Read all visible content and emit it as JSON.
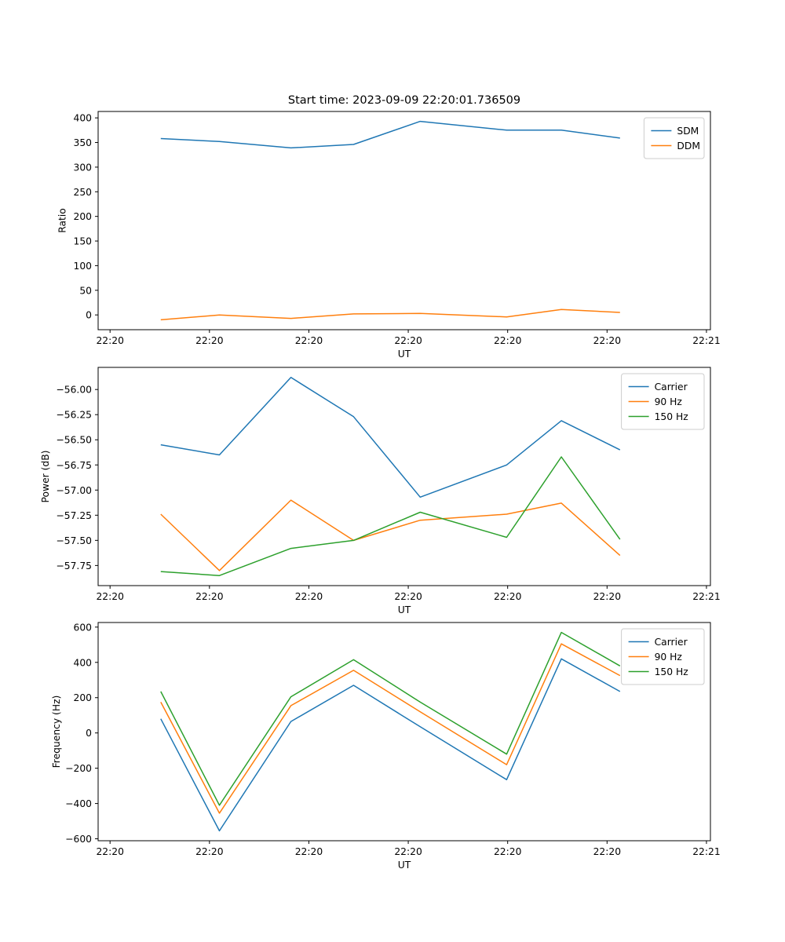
{
  "figure": {
    "title": "Start time: 2023-09-09 22:20:01.736509",
    "background": "#ffffff"
  },
  "chart_data": [
    {
      "type": "line",
      "name": "ratio",
      "xlabel": "UT",
      "ylabel": "Ratio",
      "x_unit": "seconds after 22:20:00 UT",
      "x": [
        5.1,
        11.0,
        18.2,
        24.5,
        31.2,
        39.9,
        45.4,
        51.3
      ],
      "xlim": [
        -1.2,
        60.4
      ],
      "ylim": [
        -30,
        413
      ],
      "xticks": [
        {
          "v": 0,
          "label": "22:20"
        },
        {
          "v": 10,
          "label": "22:20"
        },
        {
          "v": 20,
          "label": "22:20"
        },
        {
          "v": 30,
          "label": "22:20"
        },
        {
          "v": 40,
          "label": "22:20"
        },
        {
          "v": 50,
          "label": "22:20"
        },
        {
          "v": 60,
          "label": "22:21"
        }
      ],
      "yticks": [
        {
          "v": 0,
          "label": "0"
        },
        {
          "v": 50,
          "label": "50"
        },
        {
          "v": 100,
          "label": "100"
        },
        {
          "v": 150,
          "label": "150"
        },
        {
          "v": 200,
          "label": "200"
        },
        {
          "v": 250,
          "label": "250"
        },
        {
          "v": 300,
          "label": "300"
        },
        {
          "v": 350,
          "label": "350"
        },
        {
          "v": 400,
          "label": "400"
        }
      ],
      "legend_position": "upper right",
      "series": [
        {
          "name": "SDM",
          "color": "#1f77b4",
          "values": [
            358,
            352,
            339,
            346,
            393,
            375,
            375,
            359
          ]
        },
        {
          "name": "DDM",
          "color": "#ff7f0e",
          "values": [
            -10,
            0,
            -7,
            2,
            3,
            -4,
            11,
            5
          ]
        }
      ]
    },
    {
      "type": "line",
      "name": "power",
      "xlabel": "UT",
      "ylabel": "Power (dB)",
      "x_unit": "seconds after 22:20:00 UT",
      "x": [
        5.1,
        11.0,
        18.2,
        24.5,
        31.2,
        39.9,
        45.4,
        51.3
      ],
      "xlim": [
        -1.2,
        60.4
      ],
      "ylim": [
        -57.95,
        -55.78
      ],
      "xticks": [
        {
          "v": 0,
          "label": "22:20"
        },
        {
          "v": 10,
          "label": "22:20"
        },
        {
          "v": 20,
          "label": "22:20"
        },
        {
          "v": 30,
          "label": "22:20"
        },
        {
          "v": 40,
          "label": "22:20"
        },
        {
          "v": 50,
          "label": "22:20"
        },
        {
          "v": 60,
          "label": "22:21"
        }
      ],
      "yticks": [
        {
          "v": -57.75,
          "label": "−57.75"
        },
        {
          "v": -57.5,
          "label": "−57.50"
        },
        {
          "v": -57.25,
          "label": "−57.25"
        },
        {
          "v": -57.0,
          "label": "−57.00"
        },
        {
          "v": -56.75,
          "label": "−56.75"
        },
        {
          "v": -56.5,
          "label": "−56.50"
        },
        {
          "v": -56.25,
          "label": "−56.25"
        },
        {
          "v": -56.0,
          "label": "−56.00"
        }
      ],
      "legend_position": "upper right",
      "series": [
        {
          "name": "Carrier",
          "color": "#1f77b4",
          "values": [
            -56.55,
            -56.65,
            -55.88,
            -56.27,
            -57.07,
            -56.75,
            -56.31,
            -56.6
          ]
        },
        {
          "name": "90 Hz",
          "color": "#ff7f0e",
          "values": [
            -57.24,
            -57.8,
            -57.1,
            -57.5,
            -57.3,
            -57.24,
            -57.13,
            -57.65
          ]
        },
        {
          "name": "150 Hz",
          "color": "#2ca02c",
          "values": [
            -57.81,
            -57.85,
            -57.58,
            -57.5,
            -57.22,
            -57.47,
            -56.67,
            -57.49
          ]
        }
      ]
    },
    {
      "type": "line",
      "name": "frequency",
      "xlabel": "UT",
      "ylabel": "Frequency (Hz)",
      "x_unit": "seconds after 22:20:00 UT",
      "x": [
        5.1,
        11.0,
        18.2,
        24.5,
        31.2,
        39.9,
        45.4,
        51.3
      ],
      "xlim": [
        -1.2,
        60.4
      ],
      "ylim": [
        -611,
        626
      ],
      "xticks": [
        {
          "v": 0,
          "label": "22:20"
        },
        {
          "v": 10,
          "label": "22:20"
        },
        {
          "v": 20,
          "label": "22:20"
        },
        {
          "v": 30,
          "label": "22:20"
        },
        {
          "v": 40,
          "label": "22:20"
        },
        {
          "v": 50,
          "label": "22:20"
        },
        {
          "v": 60,
          "label": "22:21"
        }
      ],
      "yticks": [
        {
          "v": -600,
          "label": "−600"
        },
        {
          "v": -400,
          "label": "−400"
        },
        {
          "v": -200,
          "label": "−200"
        },
        {
          "v": 0,
          "label": "0"
        },
        {
          "v": 200,
          "label": "200"
        },
        {
          "v": 400,
          "label": "400"
        },
        {
          "v": 600,
          "label": "600"
        }
      ],
      "legend_position": "upper right",
      "series": [
        {
          "name": "Carrier",
          "color": "#1f77b4",
          "values": [
            80,
            -555,
            65,
            270,
            35,
            -265,
            420,
            235
          ]
        },
        {
          "name": "90 Hz",
          "color": "#ff7f0e",
          "values": [
            175,
            -455,
            155,
            355,
            120,
            -180,
            505,
            325
          ]
        },
        {
          "name": "150 Hz",
          "color": "#2ca02c",
          "values": [
            235,
            -410,
            205,
            415,
            175,
            -120,
            570,
            380
          ]
        }
      ]
    }
  ]
}
